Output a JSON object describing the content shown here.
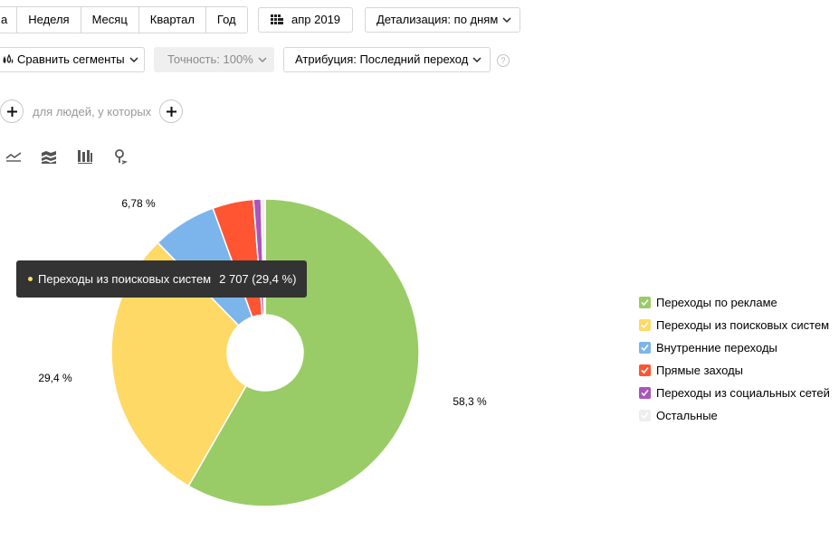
{
  "toolbar": {
    "periods": [
      "а",
      "Неделя",
      "Месяц",
      "Квартал",
      "Год"
    ],
    "date_button": "апр 2019",
    "detail_button": "Детализация: по дням",
    "compare_button": "Сравнить сегменты",
    "accuracy_button": "Точность: 100%",
    "attribution_button": "Атрибуция: Последний переход",
    "help_glyph": "?"
  },
  "segment": {
    "label": "для людей, у которых"
  },
  "view_icons": [
    "line-chart-icon",
    "area-chart-icon",
    "stacked-bar-icon",
    "map-pin-icon"
  ],
  "tooltip": {
    "label": "Переходы из поисковых систем",
    "value": "2 707 (29,4 %)",
    "dot_color": "#ffd966"
  },
  "legend": [
    {
      "label": "Переходы по рекламе",
      "color": "#99cc66",
      "checked": true
    },
    {
      "label": "Переходы из поисковых систем",
      "color": "#ffd966",
      "checked": true
    },
    {
      "label": "Внутренние переходы",
      "color": "#7cb5ec",
      "checked": true
    },
    {
      "label": "Прямые заходы",
      "color": "#ff5533",
      "checked": true
    },
    {
      "label": "Переходы из социальных сетей",
      "color": "#aa55bb",
      "checked": true
    },
    {
      "label": "Остальные",
      "color": "#eeeeee",
      "checked": true
    }
  ],
  "chart_data": {
    "type": "pie",
    "donut": true,
    "categories": [
      "Переходы по рекламе",
      "Переходы из поисковых систем",
      "Внутренние переходы",
      "Прямые заходы",
      "Переходы из социальных сетей",
      "Остальные"
    ],
    "values": [
      58.3,
      29.4,
      6.78,
      4.3,
      0.8,
      0.42
    ],
    "colors": [
      "#99cc66",
      "#ffd966",
      "#7cb5ec",
      "#ff5533",
      "#aa55bb",
      "#eeeeee"
    ],
    "data_labels": [
      "58,3 %",
      "29,4 %",
      "6,78 %",
      "",
      "",
      ""
    ],
    "unit": "%"
  }
}
